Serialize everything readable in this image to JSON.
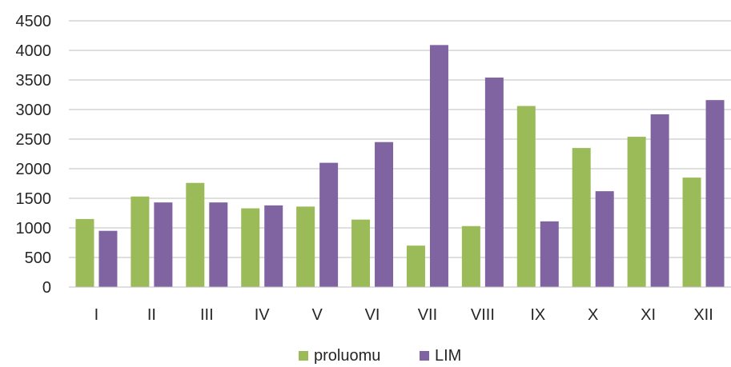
{
  "chart_data": {
    "type": "bar",
    "categories": [
      "I",
      "II",
      "III",
      "IV",
      "V",
      "VI",
      "VII",
      "VIII",
      "IX",
      "X",
      "XI",
      "XII"
    ],
    "series": [
      {
        "name": "proluomu",
        "color": "#9BBB59",
        "values": [
          1150,
          1530,
          1760,
          1330,
          1360,
          1140,
          700,
          1030,
          3060,
          2350,
          2540,
          1850
        ]
      },
      {
        "name": "LIM",
        "color": "#8064A2",
        "values": [
          950,
          1430,
          1430,
          1380,
          2100,
          2450,
          4090,
          3540,
          1110,
          1620,
          2920,
          3160
        ]
      }
    ],
    "y_ticks": [
      "0",
      "500",
      "1000",
      "1500",
      "2000",
      "2500",
      "3000",
      "3500",
      "4000",
      "4500"
    ],
    "ylim": [
      0,
      4500
    ],
    "title": "",
    "xlabel": "",
    "ylabel": "",
    "grid": true,
    "legend_position": "bottom"
  }
}
